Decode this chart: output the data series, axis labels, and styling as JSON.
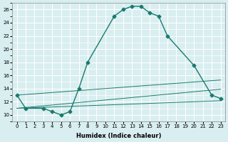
{
  "xlabel": "Humidex (Indice chaleur)",
  "background_color": "#d8eef0",
  "line_color": "#1a7a6e",
  "grid_color": "#ffffff",
  "xlim": [
    -0.5,
    23.5
  ],
  "ylim": [
    9,
    27
  ],
  "xticks": [
    0,
    1,
    2,
    3,
    4,
    5,
    6,
    7,
    8,
    9,
    10,
    11,
    12,
    13,
    14,
    15,
    16,
    17,
    18,
    19,
    20,
    21,
    22,
    23
  ],
  "yticks": [
    10,
    12,
    14,
    16,
    18,
    20,
    22,
    24,
    26
  ],
  "main_series": {
    "x": [
      0,
      1,
      3,
      4,
      5,
      6,
      7,
      8,
      11,
      12,
      13,
      14,
      15,
      16,
      17,
      20,
      22,
      23
    ],
    "y": [
      13,
      11,
      11,
      10.5,
      10,
      10.5,
      14,
      18,
      25,
      26,
      26.5,
      26.5,
      25.5,
      25,
      22,
      17.5,
      13,
      12.5
    ],
    "marker": "D",
    "markersize": 2.5
  },
  "line1": {
    "x": [
      0,
      1,
      2,
      3,
      4,
      5,
      6,
      7,
      8,
      9,
      10,
      11,
      12,
      13,
      14,
      15,
      16,
      17,
      18,
      19,
      20,
      21,
      22,
      23
    ],
    "y": [
      13,
      12.1,
      12.2,
      12.4,
      12.5,
      12.7,
      12.8,
      12.9,
      13.1,
      13.2,
      13.4,
      13.5,
      13.7,
      13.8,
      14.0,
      14.1,
      14.3,
      14.4,
      14.6,
      14.7,
      14.9,
      15.0,
      15.2,
      15.3
    ]
  },
  "line2": {
    "x": [
      0,
      1,
      2,
      3,
      4,
      5,
      6,
      7,
      8,
      9,
      10,
      11,
      12,
      13,
      14,
      15,
      16,
      17,
      18,
      19,
      20,
      21,
      22,
      23
    ],
    "y": [
      11,
      11.1,
      11.2,
      11.4,
      11.5,
      11.6,
      11.7,
      11.9,
      12.0,
      12.1,
      12.2,
      12.4,
      12.5,
      12.6,
      12.8,
      12.9,
      13.0,
      13.1,
      13.3,
      13.4,
      13.5,
      13.7,
      13.8,
      13.9
    ]
  },
  "line3": {
    "x": [
      0,
      1,
      2,
      3,
      4,
      5,
      6,
      7,
      8,
      9,
      10,
      11,
      12,
      13,
      14,
      15,
      16,
      17,
      18,
      19,
      20,
      21,
      22,
      23
    ],
    "y": [
      11,
      11.05,
      11.1,
      11.15,
      11.2,
      11.25,
      11.3,
      11.35,
      11.4,
      11.45,
      11.5,
      11.55,
      11.6,
      11.65,
      11.7,
      11.75,
      11.8,
      11.85,
      11.9,
      11.95,
      12.0,
      12.05,
      12.1,
      12.15
    ]
  }
}
